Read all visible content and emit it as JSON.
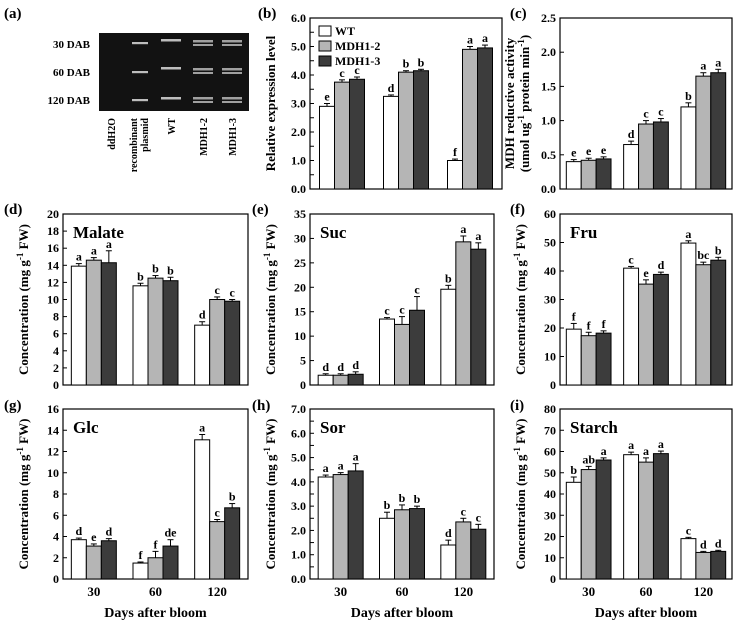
{
  "colors": {
    "wt": "#ffffff",
    "mdh1_2": "#b5b5b5",
    "mdh1_3": "#3c3c3c",
    "gel_bg": "#121212",
    "band": "#d0d0d0",
    "axis": "#000000"
  },
  "legend": {
    "entries": [
      "WT",
      "MDH1-2",
      "MDH1-3"
    ]
  },
  "gel": {
    "label": "(a)",
    "rows": [
      "30 DAB",
      "60 DAB",
      "120 DAB"
    ],
    "lanes": [
      "ddH2O",
      "recombinant plasmid",
      "WT",
      "MDH1-2",
      "MDH1-3"
    ]
  },
  "common": {
    "categories": [
      "30",
      "60",
      "120"
    ],
    "series_names": [
      "WT",
      "MDH1-2",
      "MDH1-3"
    ],
    "xlabel": "Days after bloom",
    "conc_ylabel": "Concentration (mg g-1 FW)"
  },
  "chart_data": [
    {
      "id": "b",
      "label": "(b)",
      "type": "bar",
      "title": "",
      "ylabel": "Relative expression level",
      "ylim": [
        0,
        6
      ],
      "yticks": [
        "0.0",
        "0.5",
        "1.0",
        "1.5",
        "2.0",
        "2.5",
        "3.0",
        "3.5",
        "4.0",
        "4.5",
        "5.0",
        "5.5",
        "6.0"
      ],
      "categories": [
        "30",
        "60",
        "120"
      ],
      "series": [
        {
          "name": "WT",
          "values": [
            2.9,
            3.25,
            1.0
          ],
          "errors": [
            0.1,
            0.05,
            0.05
          ],
          "letters": [
            "e",
            "d",
            "f"
          ]
        },
        {
          "name": "MDH1-2",
          "values": [
            3.75,
            4.1,
            4.9
          ],
          "errors": [
            0.08,
            0.05,
            0.1
          ],
          "letters": [
            "c",
            "b",
            "a"
          ]
        },
        {
          "name": "MDH1-3",
          "values": [
            3.85,
            4.15,
            4.95
          ],
          "errors": [
            0.08,
            0.05,
            0.1
          ],
          "letters": [
            "c",
            "b",
            "a"
          ]
        }
      ]
    },
    {
      "id": "c",
      "label": "(c)",
      "type": "bar",
      "title": "",
      "ylabel": "MDH reductive activity (umol ug-1 protein min-1)",
      "ylim": [
        0,
        2.5
      ],
      "yticks": [
        "0.0",
        "0.5",
        "1.0",
        "1.5",
        "2.0",
        "2.5"
      ],
      "categories": [
        "30",
        "60",
        "120"
      ],
      "series": [
        {
          "name": "WT",
          "values": [
            0.4,
            0.65,
            1.2
          ],
          "errors": [
            0.03,
            0.05,
            0.06
          ],
          "letters": [
            "e",
            "d",
            "b"
          ]
        },
        {
          "name": "MDH1-2",
          "values": [
            0.42,
            0.95,
            1.65
          ],
          "errors": [
            0.03,
            0.05,
            0.05
          ],
          "letters": [
            "e",
            "c",
            "a"
          ]
        },
        {
          "name": "MDH1-3",
          "values": [
            0.44,
            0.98,
            1.7
          ],
          "errors": [
            0.03,
            0.05,
            0.05
          ],
          "letters": [
            "e",
            "c",
            "a"
          ]
        }
      ]
    },
    {
      "id": "d",
      "label": "(d)",
      "type": "bar",
      "title": "Malate",
      "ylabel": "Concentration (mg g-1 FW)",
      "ylim": [
        0,
        20
      ],
      "yticks": [
        "0",
        "2",
        "4",
        "6",
        "8",
        "10",
        "12",
        "14",
        "16",
        "18",
        "20"
      ],
      "categories": [
        "30",
        "60",
        "120"
      ],
      "series": [
        {
          "name": "WT",
          "values": [
            13.9,
            11.6,
            7.0
          ],
          "errors": [
            0.3,
            0.3,
            0.4
          ],
          "letters": [
            "a",
            "b",
            "d"
          ]
        },
        {
          "name": "MDH1-2",
          "values": [
            14.6,
            12.5,
            10.0
          ],
          "errors": [
            0.3,
            0.3,
            0.3
          ],
          "letters": [
            "a",
            "b",
            "c"
          ]
        },
        {
          "name": "MDH1-3",
          "values": [
            14.3,
            12.2,
            9.8
          ],
          "errors": [
            1.4,
            0.4,
            0.2
          ],
          "letters": [
            "a",
            "b",
            "c"
          ]
        }
      ]
    },
    {
      "id": "e",
      "label": "(e)",
      "type": "bar",
      "title": "Suc",
      "ylabel": "Concentration (mg g-1 FW)",
      "ylim": [
        0,
        35
      ],
      "yticks": [
        "0",
        "5",
        "10",
        "15",
        "20",
        "25",
        "30",
        "35"
      ],
      "categories": [
        "30",
        "60",
        "120"
      ],
      "series": [
        {
          "name": "WT",
          "values": [
            2.0,
            13.5,
            19.6
          ],
          "errors": [
            0.3,
            0.3,
            0.8
          ],
          "letters": [
            "d",
            "c",
            "b"
          ]
        },
        {
          "name": "MDH1-2",
          "values": [
            2.0,
            12.4,
            29.3
          ],
          "errors": [
            0.3,
            1.6,
            1.2
          ],
          "letters": [
            "d",
            "c",
            "a"
          ]
        },
        {
          "name": "MDH1-3",
          "values": [
            2.2,
            15.3,
            27.8
          ],
          "errors": [
            0.5,
            2.8,
            1.3
          ],
          "letters": [
            "d",
            "c",
            "a"
          ]
        }
      ]
    },
    {
      "id": "f",
      "label": "(f)",
      "type": "bar",
      "title": "Fru",
      "ylabel": "Concentration (mg g-1 FW)",
      "ylim": [
        0,
        60
      ],
      "yticks": [
        "0",
        "10",
        "20",
        "30",
        "40",
        "50",
        "60"
      ],
      "categories": [
        "30",
        "60",
        "120"
      ],
      "series": [
        {
          "name": "WT",
          "values": [
            19.6,
            41.0,
            49.8
          ],
          "errors": [
            2.0,
            0.6,
            0.8
          ],
          "letters": [
            "f",
            "c",
            "a"
          ]
        },
        {
          "name": "MDH1-2",
          "values": [
            17.3,
            35.4,
            42.2
          ],
          "errors": [
            1.2,
            1.5,
            0.9
          ],
          "letters": [
            "f",
            "e",
            "bc"
          ]
        },
        {
          "name": "MDH1-3",
          "values": [
            18.2,
            38.8,
            43.8
          ],
          "errors": [
            0.8,
            0.8,
            1.0
          ],
          "letters": [
            "f",
            "d",
            "b"
          ]
        }
      ]
    },
    {
      "id": "g",
      "label": "(g)",
      "type": "bar",
      "title": "Glc",
      "ylabel": "Concentration (mg g-1 FW)",
      "ylim": [
        0,
        16
      ],
      "yticks": [
        "0",
        "2",
        "4",
        "6",
        "8",
        "10",
        "12",
        "14",
        "16"
      ],
      "categories": [
        "30",
        "60",
        "120"
      ],
      "series": [
        {
          "name": "WT",
          "values": [
            3.7,
            1.5,
            13.1
          ],
          "errors": [
            0.15,
            0.1,
            0.5
          ],
          "letters": [
            "d",
            "f",
            "a"
          ]
        },
        {
          "name": "MDH1-2",
          "values": [
            3.1,
            2.0,
            5.4
          ],
          "errors": [
            0.2,
            0.6,
            0.2
          ],
          "letters": [
            "e",
            "f",
            "c"
          ]
        },
        {
          "name": "MDH1-3",
          "values": [
            3.6,
            3.1,
            6.7
          ],
          "errors": [
            0.2,
            0.6,
            0.4
          ],
          "letters": [
            "d",
            "de",
            "b"
          ]
        }
      ]
    },
    {
      "id": "h",
      "label": "(h)",
      "type": "bar",
      "title": "Sor",
      "ylabel": "Concentration (mg g-1 FW)",
      "ylim": [
        0,
        7
      ],
      "yticks": [
        "0.0",
        "0.5",
        "1.0",
        "1.5",
        "2.0",
        "2.5",
        "3.0",
        "3.5",
        "4.0",
        "4.5",
        "5.0",
        "5.5",
        "6.0",
        "6.5",
        "7.0"
      ],
      "categories": [
        "30",
        "60",
        "120"
      ],
      "series": [
        {
          "name": "WT",
          "values": [
            4.2,
            2.5,
            1.4
          ],
          "errors": [
            0.08,
            0.25,
            0.2
          ],
          "letters": [
            "a",
            "b",
            "d"
          ]
        },
        {
          "name": "MDH1-2",
          "values": [
            4.3,
            2.85,
            2.35
          ],
          "errors": [
            0.08,
            0.2,
            0.15
          ],
          "letters": [
            "a",
            "b",
            "c"
          ]
        },
        {
          "name": "MDH1-3",
          "values": [
            4.45,
            2.9,
            2.05
          ],
          "errors": [
            0.3,
            0.1,
            0.2
          ],
          "letters": [
            "a",
            "b",
            "c"
          ]
        }
      ]
    },
    {
      "id": "i",
      "label": "(i)",
      "type": "bar",
      "title": "Starch",
      "ylabel": "Concentration (mg g-1 FW)",
      "ylim": [
        0,
        80
      ],
      "yticks": [
        "0",
        "10",
        "20",
        "30",
        "40",
        "50",
        "60",
        "70",
        "80"
      ],
      "categories": [
        "30",
        "60",
        "120"
      ],
      "series": [
        {
          "name": "WT",
          "values": [
            45.5,
            58.5,
            19.0
          ],
          "errors": [
            2.5,
            1.2,
            0.6
          ],
          "letters": [
            "b",
            "a",
            "c"
          ]
        },
        {
          "name": "MDH1-2",
          "values": [
            51.5,
            55.0,
            12.5
          ],
          "errors": [
            1.5,
            2.0,
            0.5
          ],
          "letters": [
            "ab",
            "a",
            "d"
          ]
        },
        {
          "name": "MDH1-3",
          "values": [
            56.0,
            59.0,
            13.0
          ],
          "errors": [
            1.0,
            1.2,
            0.5
          ],
          "letters": [
            "a",
            "a",
            "d"
          ]
        }
      ]
    }
  ]
}
